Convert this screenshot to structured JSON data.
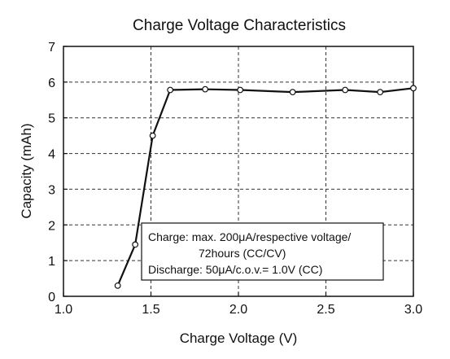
{
  "chart_data": {
    "type": "line",
    "title": "Charge Voltage Characteristics",
    "xlabel": "Charge Voltage (V)",
    "ylabel": "Capacity (mAh)",
    "xlim": [
      1.0,
      3.0
    ],
    "ylim": [
      0,
      7
    ],
    "x_ticks": [
      "1.0",
      "1.5",
      "2.0",
      "2.5",
      "3.0"
    ],
    "y_ticks": [
      "0",
      "1",
      "2",
      "3",
      "4",
      "5",
      "6",
      "7"
    ],
    "grid": "dashed",
    "series": [
      {
        "x": [
          1.31,
          1.41,
          1.51,
          1.61,
          1.81,
          2.01,
          2.31,
          2.61,
          2.81,
          3.0
        ],
        "values": [
          0.3,
          1.45,
          4.5,
          5.78,
          5.8,
          5.78,
          5.72,
          5.78,
          5.72,
          5.83
        ],
        "marker": "open-circle",
        "color": "#111111"
      }
    ],
    "annotation": {
      "line1": "Charge: max. 200μA/respective voltage/",
      "line2": "72hours (CC/CV)",
      "line3": "Discharge: 50μA/c.o.v.= 1.0V (CC)"
    }
  }
}
